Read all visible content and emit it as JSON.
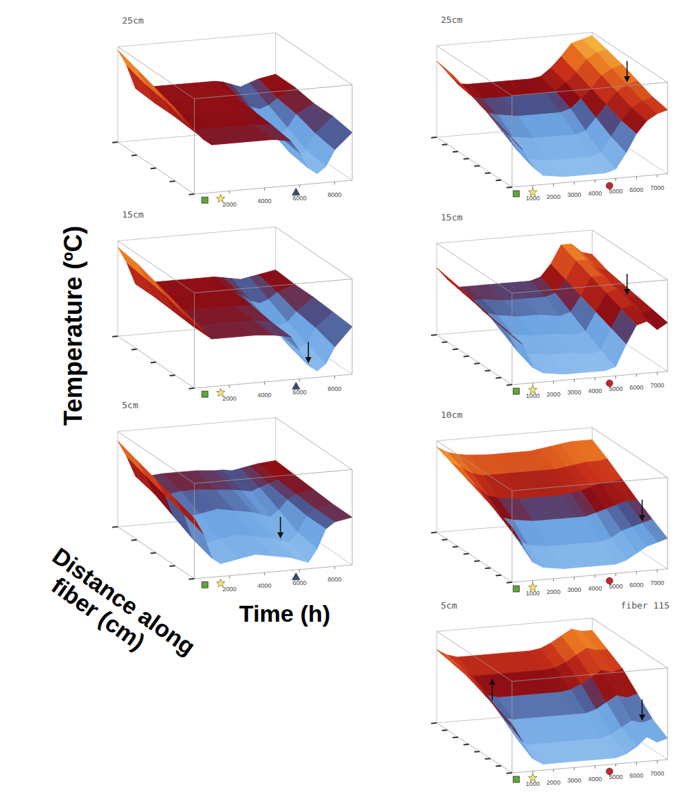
{
  "axis_titles": {
    "z": "Temperature (ºC)",
    "y": "Distance along fiber (cm)",
    "x": "Time (h)"
  },
  "chart_data": [
    {
      "type": "surface",
      "title": "25cm",
      "tick_labels": "x",
      "x": [
        0,
        500,
        1000,
        1500,
        2500,
        3500,
        4500,
        5500,
        6000,
        6500,
        7000,
        7500,
        8000,
        9000
      ],
      "y": [
        0,
        20,
        40,
        60,
        80
      ],
      "z": [
        [
          20,
          17,
          15,
          15,
          15,
          15,
          15,
          14,
          10,
          5,
          3,
          5,
          10,
          15
        ],
        [
          23,
          19,
          15.5,
          15.5,
          15.5,
          15.5,
          15.5,
          15,
          11,
          6,
          4,
          6,
          11,
          16
        ],
        [
          25,
          21,
          16,
          16,
          16,
          16,
          16,
          15.5,
          13,
          9,
          7,
          9,
          13,
          16
        ],
        [
          27,
          22,
          16,
          16,
          16,
          16,
          16,
          16,
          14.5,
          12,
          11,
          12,
          14,
          17
        ],
        [
          29,
          24,
          16.5,
          16.5,
          16.5,
          16.5,
          16.5,
          16.5,
          16,
          15,
          14,
          15,
          16,
          17
        ]
      ],
      "xlim": [
        0,
        9000
      ],
      "xticks": [
        2000,
        4000,
        6000,
        8000
      ],
      "ylim": [
        0,
        80
      ],
      "yticks": [
        0,
        20,
        40,
        60,
        80
      ],
      "zlim": [
        0,
        30
      ],
      "annotations": [
        {
          "marker": "square",
          "x": 600,
          "color": "#5ea832"
        },
        {
          "marker": "star",
          "x": 1500,
          "color": "#f3e27a"
        },
        {
          "marker": "triangle",
          "x": 5800,
          "color": "#3a4a78"
        }
      ]
    },
    {
      "type": "surface",
      "title": "15cm",
      "tick_labels": "x",
      "x": [
        0,
        500,
        1000,
        1500,
        2500,
        3500,
        4500,
        5500,
        6000,
        6500,
        7000,
        7500,
        8000,
        9000
      ],
      "y": [
        0,
        20,
        40,
        60,
        80
      ],
      "z": [
        [
          21,
          18,
          15,
          15,
          15,
          15,
          14.5,
          13.5,
          9,
          4,
          2,
          4,
          9,
          15
        ],
        [
          23,
          19,
          15,
          15,
          15,
          15,
          15,
          14,
          10,
          6,
          5,
          6,
          11,
          15.5
        ],
        [
          25,
          21,
          15.5,
          15.5,
          15.5,
          15.5,
          15.5,
          15,
          12,
          9,
          8,
          9,
          12,
          16
        ],
        [
          27,
          22,
          16,
          16,
          16,
          16,
          16,
          15.5,
          14,
          12,
          11,
          12,
          14,
          16
        ],
        [
          28,
          23,
          16,
          16,
          16,
          16,
          16,
          16,
          15.5,
          15,
          14.5,
          15,
          15.5,
          16.5
        ]
      ],
      "xlim": [
        0,
        9000
      ],
      "xticks": [
        2000,
        4000,
        6000,
        8000
      ],
      "ylim": [
        0,
        80
      ],
      "yticks": [
        0,
        20,
        40,
        60,
        80
      ],
      "zlim": [
        0,
        30
      ],
      "annotations": [
        {
          "marker": "square",
          "x": 600,
          "color": "#5ea832"
        },
        {
          "marker": "star",
          "x": 1500,
          "color": "#f3e27a"
        },
        {
          "marker": "triangle",
          "x": 5800,
          "color": "#3a4a78"
        },
        {
          "marker": "arrow-down",
          "x": 6500,
          "y": 0
        }
      ]
    },
    {
      "type": "surface",
      "title": "5cm",
      "tick_labels": "x",
      "x": [
        0,
        500,
        1000,
        1500,
        2500,
        3500,
        4500,
        5500,
        6000,
        6500,
        7000,
        7500,
        8000,
        9000
      ],
      "y": [
        0,
        20,
        40,
        60,
        80
      ],
      "z": [
        [
          19,
          14,
          6,
          4,
          5,
          6,
          5,
          4,
          3,
          2,
          6,
          12,
          14,
          15
        ],
        [
          21,
          16,
          8,
          6,
          7,
          8,
          7,
          6,
          5,
          4,
          7,
          12,
          14,
          15
        ],
        [
          23,
          18,
          11,
          10,
          11,
          12,
          11,
          10,
          9,
          8,
          10,
          13,
          14.5,
          15.5
        ],
        [
          25,
          20,
          14,
          13,
          14,
          14,
          13.5,
          13,
          12.5,
          12,
          13,
          14,
          15,
          16
        ],
        [
          27,
          22,
          15.5,
          15,
          15.5,
          15.5,
          15.5,
          15,
          15,
          14.5,
          15,
          15.5,
          16,
          16.5
        ]
      ],
      "xlim": [
        0,
        9000
      ],
      "xticks": [
        2000,
        4000,
        6000,
        8000
      ],
      "ylim": [
        0,
        80
      ],
      "yticks": [
        0,
        20,
        40,
        60,
        80
      ],
      "zlim": [
        0,
        30
      ],
      "annotations": [
        {
          "marker": "square",
          "x": 600,
          "color": "#5ea832"
        },
        {
          "marker": "star",
          "x": 1500,
          "color": "#f3e27a"
        },
        {
          "marker": "triangle",
          "x": 5800,
          "color": "#3a4a78"
        },
        {
          "marker": "arrow-down",
          "x": 6000,
          "y": 20
        }
      ]
    },
    {
      "type": "surface",
      "title": "25cm",
      "tick_labels": "x",
      "x": [
        0,
        500,
        1000,
        1500,
        2500,
        3500,
        4500,
        5000,
        5500,
        6000,
        6500,
        7000,
        7500
      ],
      "y": [
        0,
        14,
        28,
        42,
        56,
        70
      ],
      "z": [
        [
          16,
          12,
          6,
          3,
          2,
          2,
          2,
          3,
          8,
          14,
          18,
          20,
          21
        ],
        [
          18,
          14,
          8,
          5,
          4,
          4,
          4,
          5,
          10,
          15,
          19,
          21,
          22
        ],
        [
          20,
          16,
          11,
          9,
          8,
          8,
          8,
          9,
          13,
          17,
          21,
          23,
          24
        ],
        [
          22,
          18,
          14,
          13,
          12,
          12,
          12,
          13,
          16,
          19,
          23,
          25,
          26
        ],
        [
          24,
          20,
          16,
          15,
          15,
          15,
          15,
          15.5,
          18,
          21,
          25,
          27,
          27.5
        ],
        [
          25,
          21,
          17,
          16.5,
          16.5,
          16.5,
          16.5,
          17,
          19.5,
          23,
          27,
          28,
          29
        ]
      ],
      "xlim": [
        0,
        7500
      ],
      "xticks": [
        1000,
        2000,
        3000,
        4000,
        5000,
        6000,
        7000
      ],
      "ylim": [
        0,
        70
      ],
      "yticks": [
        0,
        10,
        20,
        30,
        40,
        50,
        60,
        70
      ],
      "zlim": [
        0,
        30
      ],
      "annotations": [
        {
          "marker": "square",
          "x": 200,
          "color": "#5ea832"
        },
        {
          "marker": "star",
          "x": 1000,
          "color": "#f3e27a"
        },
        {
          "marker": "circle",
          "x": 4700,
          "color": "#c8242a"
        },
        {
          "marker": "arrow-down",
          "x": 7000,
          "y": 28
        }
      ]
    },
    {
      "type": "surface",
      "title": "15cm",
      "tick_labels": "x",
      "x": [
        0,
        500,
        1000,
        1500,
        2500,
        3500,
        4500,
        5000,
        5500,
        6000,
        6500,
        7000,
        7500
      ],
      "y": [
        0,
        14,
        28,
        42,
        56,
        70
      ],
      "z": [
        [
          16,
          13,
          5,
          3,
          2,
          2,
          2,
          3,
          10,
          16,
          17,
          14,
          16
        ],
        [
          17,
          14,
          7,
          6,
          5,
          5,
          4,
          5,
          12,
          18,
          19,
          16,
          17
        ],
        [
          18,
          15,
          10,
          9,
          8,
          8,
          7,
          8,
          14,
          20,
          21,
          18,
          18
        ],
        [
          20,
          16,
          13,
          12,
          11,
          11,
          10,
          11,
          16,
          22,
          22,
          19,
          19
        ],
        [
          21,
          17,
          14,
          14,
          13,
          13,
          13,
          14,
          18,
          24,
          24,
          21,
          20
        ],
        [
          22,
          18,
          15,
          15,
          15,
          15,
          15,
          16,
          20,
          26,
          26,
          23,
          22
        ]
      ],
      "xlim": [
        0,
        7500
      ],
      "xticks": [
        1000,
        2000,
        3000,
        4000,
        5000,
        6000,
        7000
      ],
      "ylim": [
        0,
        70
      ],
      "yticks": [
        0,
        10,
        20,
        30,
        40,
        50,
        60,
        70
      ],
      "zlim": [
        0,
        30
      ],
      "annotations": [
        {
          "marker": "square",
          "x": 200,
          "color": "#5ea832"
        },
        {
          "marker": "star",
          "x": 1000,
          "color": "#f3e27a"
        },
        {
          "marker": "circle",
          "x": 4700,
          "color": "#c8242a"
        },
        {
          "marker": "arrow-down",
          "x": 7000,
          "y": 28
        }
      ]
    },
    {
      "type": "surface",
      "title": "10cm",
      "tick_labels": "x",
      "x": [
        0,
        500,
        1000,
        1500,
        2500,
        3500,
        4500,
        5000,
        5500,
        6000,
        6500,
        7000,
        7500
      ],
      "y": [
        0,
        14,
        28,
        42,
        56,
        70
      ],
      "z": [
        [
          18,
          12,
          6,
          4,
          3,
          3,
          3,
          3,
          4,
          6,
          8,
          9,
          10
        ],
        [
          20,
          15,
          10,
          8,
          7,
          7,
          7,
          7,
          8,
          10,
          11,
          12,
          13
        ],
        [
          22,
          18,
          14,
          13,
          12,
          12,
          12,
          12,
          13,
          14,
          15,
          16,
          16
        ],
        [
          24,
          21,
          18,
          17,
          16,
          16,
          16,
          16.5,
          17,
          18,
          19,
          19,
          19.5
        ],
        [
          26,
          24,
          22,
          21,
          21,
          21,
          21,
          21,
          21.5,
          22,
          22.5,
          22.5,
          23
        ],
        [
          28,
          26,
          25,
          24.5,
          24,
          24,
          24,
          24.5,
          25,
          25.5,
          26,
          26,
          26
        ]
      ],
      "xlim": [
        0,
        7500
      ],
      "xticks": [
        1000,
        2000,
        3000,
        4000,
        5000,
        6000,
        7000
      ],
      "ylim": [
        0,
        70
      ],
      "yticks": [
        0,
        10,
        20,
        30,
        40,
        50,
        60,
        70
      ],
      "zlim": [
        0,
        30
      ],
      "annotations": [
        {
          "marker": "square",
          "x": 200,
          "color": "#5ea832"
        },
        {
          "marker": "star",
          "x": 1000,
          "color": "#f3e27a"
        },
        {
          "marker": "circle",
          "x": 4700,
          "color": "#c8242a"
        },
        {
          "marker": "arrow-down",
          "x": 7000,
          "y": 14
        }
      ]
    },
    {
      "type": "surface",
      "title": "5cm",
      "subtitle": "fiber 115",
      "tick_labels": "x",
      "x": [
        0,
        500,
        1000,
        1500,
        2500,
        3500,
        4500,
        5000,
        5500,
        6000,
        6500,
        7000,
        7500
      ],
      "y": [
        0,
        14,
        28,
        42,
        56,
        70
      ],
      "z": [
        [
          16,
          10,
          4,
          2,
          2,
          2,
          2,
          2,
          3,
          5,
          8,
          6,
          7
        ],
        [
          18,
          13,
          7,
          5,
          5,
          5,
          5,
          5,
          6,
          8,
          10,
          9,
          10
        ],
        [
          20,
          16,
          11,
          10,
          10,
          10,
          10,
          10,
          11,
          13,
          15,
          14,
          15
        ],
        [
          22,
          19,
          15,
          14,
          14,
          14,
          14,
          14.5,
          16,
          18,
          20,
          19,
          20
        ],
        [
          23,
          21,
          18,
          18,
          18,
          18,
          18,
          18.5,
          20,
          22,
          24,
          23,
          23
        ],
        [
          24,
          22,
          21,
          21,
          21,
          21,
          21,
          21.5,
          23,
          25,
          27,
          26,
          26
        ]
      ],
      "xlim": [
        0,
        7500
      ],
      "xticks": [
        1000,
        2000,
        3000,
        4000,
        5000,
        6000,
        7000
      ],
      "ylim": [
        0,
        70
      ],
      "yticks": [
        0,
        10,
        20,
        30,
        40,
        50,
        60,
        70
      ],
      "zlim": [
        0,
        30
      ],
      "annotations": [
        {
          "marker": "square",
          "x": 200,
          "color": "#5ea832"
        },
        {
          "marker": "star",
          "x": 1000,
          "color": "#f3e27a"
        },
        {
          "marker": "circle",
          "x": 4700,
          "color": "#c8242a"
        },
        {
          "marker": "arrow-up",
          "x": 500,
          "y": 28
        },
        {
          "marker": "arrow-down",
          "x": 7000,
          "y": 14
        }
      ]
    }
  ]
}
